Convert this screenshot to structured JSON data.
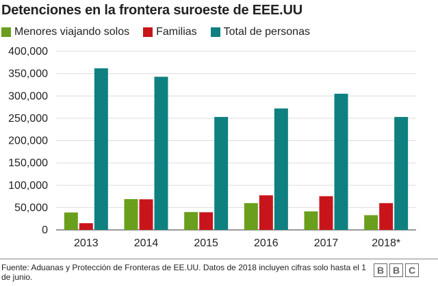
{
  "chart_data": {
    "type": "bar",
    "title": "Detenciones en la frontera suroeste de EEE.UU",
    "categories": [
      "2013",
      "2014",
      "2015",
      "2016",
      "2017",
      "2018*"
    ],
    "series": [
      {
        "name": "Menores viajando solos",
        "color": "#6a9f1e",
        "values": [
          39000,
          69000,
          40000,
          60000,
          41500,
          33000
        ]
      },
      {
        "name": "Familias",
        "color": "#c8151b",
        "values": [
          15000,
          68500,
          39500,
          77500,
          75500,
          60000
        ]
      },
      {
        "name": "Total de personas",
        "color": "#0f8080",
        "values": [
          362000,
          343000,
          253000,
          272000,
          305000,
          253000
        ]
      }
    ],
    "ylim": [
      0,
      400000
    ],
    "y_ticks": [
      0,
      50000,
      100000,
      150000,
      200000,
      250000,
      300000,
      350000,
      400000
    ],
    "y_tick_labels": [
      "0",
      "50,000",
      "100,000",
      "150,000",
      "200,000",
      "250,000",
      "300,000",
      "350,000",
      "400,000"
    ],
    "grid": true,
    "legend_position": "top-left",
    "source": "Fuente: Aduanas y Protección de Fronteras de EE.UU. Datos de 2018 incluyen cifras solo hasta el 1 de junio.",
    "logo": [
      "B",
      "B",
      "C"
    ]
  }
}
